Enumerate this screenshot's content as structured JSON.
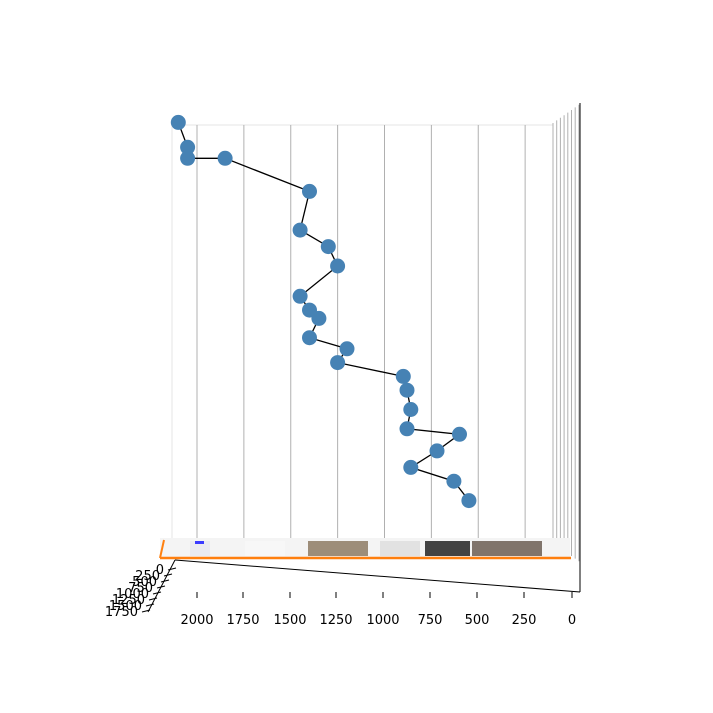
{
  "chart_data": {
    "type": "scatter",
    "title": "",
    "xlabel": "",
    "ylabel": "",
    "zlabel": "",
    "x_axis_ticks": [
      "2000",
      "1750",
      "1500",
      "1250",
      "1000",
      "750",
      "500",
      "250",
      "0"
    ],
    "y_axis_ticks": [
      "1750",
      "1500",
      "1250",
      "1000",
      "750",
      "500",
      "250",
      "0"
    ],
    "grid": true,
    "connected_by_line": true,
    "marker_color": "#4682b4",
    "line_color": "#000000",
    "plane_edge_color": "#ff7f0e",
    "series": [
      {
        "x": [
          2100,
          2050,
          2050,
          1850,
          1400,
          1450,
          1300,
          1250,
          1450,
          1400,
          1350,
          1400,
          1200,
          1250,
          900,
          880,
          860,
          880,
          600,
          720,
          860,
          630,
          550
        ],
        "z": [
          780,
          735,
          715,
          715,
          655,
          585,
          555,
          520,
          465,
          440,
          425,
          390,
          370,
          345,
          320,
          295,
          260,
          225,
          215,
          185,
          155,
          130,
          95
        ]
      }
    ]
  }
}
